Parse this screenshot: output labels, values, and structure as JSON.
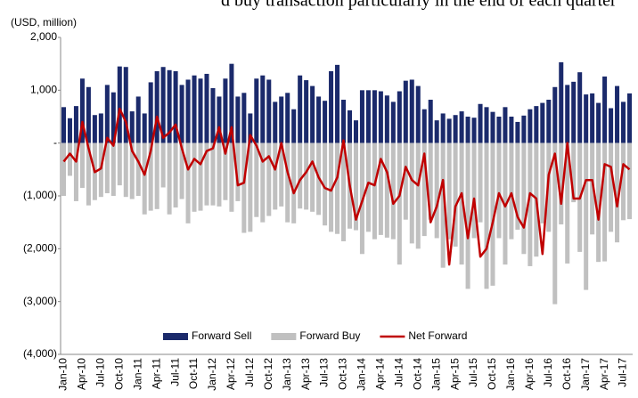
{
  "caption": "d buy transaction particularly in the end of each quarter",
  "chart_data": {
    "type": "bar_line",
    "ylabel": "(USD, million)",
    "categories": [
      "Jan-10",
      null,
      null,
      "Apr-10",
      null,
      null,
      "Jul-10",
      null,
      null,
      "Oct-10",
      null,
      null,
      "Jan-11",
      null,
      null,
      "Apr-11",
      null,
      null,
      "Jul-11",
      null,
      null,
      "Oct-11",
      null,
      null,
      "Jan-12",
      null,
      null,
      "Apr-12",
      null,
      null,
      "Jul-12",
      null,
      null,
      "Oct-12",
      null,
      null,
      "Jan-13",
      null,
      null,
      "Apr-13",
      null,
      null,
      "Jul-13",
      null,
      null,
      "Oct-13",
      null,
      null,
      "Jan-14",
      null,
      null,
      "Apr-14",
      null,
      null,
      "Jul-14",
      null,
      null,
      "Oct-14",
      null,
      null,
      "Jan-15",
      null,
      null,
      "Apr-15",
      null,
      null,
      "Jul-15",
      null,
      null,
      "Oct-15",
      null,
      null,
      "Jan-16",
      null,
      null,
      "Apr-16",
      null,
      null,
      "Jul-16",
      null,
      null,
      "Oct-16",
      null,
      null,
      "Jan-17",
      null,
      null,
      "Apr-17",
      null,
      null,
      "Jul-17",
      null
    ],
    "series": [
      {
        "name": "Forward Sell",
        "color": "#1b2a6b",
        "kind": "bar",
        "values": [
          680,
          470,
          700,
          1220,
          1060,
          530,
          560,
          1100,
          960,
          1450,
          1440,
          600,
          880,
          560,
          1150,
          1360,
          1440,
          1380,
          1360,
          1100,
          1200,
          1280,
          1220,
          1310,
          1040,
          880,
          1220,
          1500,
          880,
          950,
          560,
          1220,
          1280,
          1200,
          780,
          880,
          950,
          640,
          1280,
          1190,
          1080,
          880,
          800,
          1360,
          1480,
          820,
          620,
          430,
          1000,
          1000,
          1000,
          980,
          900,
          780,
          980,
          1180,
          1200,
          1080,
          640,
          820,
          430,
          560,
          460,
          530,
          600,
          500,
          480,
          740,
          680,
          590,
          500,
          680,
          500,
          400,
          520,
          640,
          700,
          760,
          820,
          1060,
          1530,
          1100,
          1160,
          1340,
          920,
          940,
          760,
          1260,
          660,
          1080,
          780,
          940
        ]
      },
      {
        "name": "Forward Buy",
        "color": "#c0c0c0",
        "kind": "bar",
        "values": [
          -1000,
          -620,
          -1100,
          -850,
          -1180,
          -1080,
          -1020,
          -950,
          -1000,
          -800,
          -1020,
          -1060,
          -1000,
          -1350,
          -1280,
          -1250,
          -840,
          -1350,
          -1220,
          -1060,
          -1520,
          -1300,
          -1280,
          -1180,
          -1180,
          -1200,
          -1080,
          -1300,
          -1100,
          -1700,
          -1680,
          -1400,
          -1500,
          -1380,
          -1260,
          -1200,
          -1500,
          -1520,
          -1240,
          -1260,
          -1300,
          -1360,
          -1560,
          -1680,
          -1720,
          -1860,
          -1620,
          -1650,
          -2100,
          -1680,
          -1820,
          -1740,
          -1790,
          -1820,
          -2300,
          -1450,
          -1900,
          -2000,
          -1760,
          -1450,
          -1800,
          -2360,
          -1820,
          -1960,
          -2300,
          -2760,
          -1800,
          -1500,
          -2760,
          -2700,
          -1800,
          -2300,
          -1820,
          -1640,
          -2100,
          -2330,
          -2150,
          -1520,
          -1680,
          -3050,
          -1540,
          -2280,
          -1120,
          -2060,
          -2780,
          -1730,
          -2250,
          -2240,
          -1680,
          -1880,
          -1460,
          -1440
        ]
      },
      {
        "name": "Net Forward",
        "color": "#c00000",
        "kind": "line",
        "values": [
          -350,
          -200,
          -350,
          400,
          -100,
          -550,
          -480,
          100,
          -50,
          650,
          400,
          -150,
          -350,
          -600,
          -150,
          500,
          100,
          200,
          350,
          -100,
          -500,
          -300,
          -400,
          -150,
          -100,
          300,
          -200,
          300,
          -800,
          -750,
          150,
          -50,
          -350,
          -250,
          -500,
          0,
          -550,
          -950,
          -700,
          -550,
          -350,
          -650,
          -850,
          -900,
          -650,
          50,
          -800,
          -1450,
          -1100,
          -750,
          -800,
          -300,
          -550,
          -1150,
          -1000,
          -450,
          -700,
          -800,
          -200,
          -1500,
          -1200,
          -700,
          -2300,
          -1200,
          -950,
          -1800,
          -1050,
          -2150,
          -2000,
          -1500,
          -950,
          -1200,
          -950,
          -1400,
          -1600,
          -950,
          -1050,
          -2100,
          -600,
          -200,
          -1150,
          0,
          -1050,
          -1050,
          -700,
          -700,
          -1450,
          -400,
          -450,
          -1200,
          -400,
          -500
        ]
      }
    ],
    "ylim": [
      -4000,
      2000
    ],
    "yticks": [
      {
        "value": -4000,
        "label": "(4,000)"
      },
      {
        "value": -3000,
        "label": "(3,000)"
      },
      {
        "value": -2000,
        "label": "(2,000)"
      },
      {
        "value": -1000,
        "label": "(1,000)"
      },
      {
        "value": 0,
        "label": "-"
      },
      {
        "value": 1000,
        "label": "1,000"
      },
      {
        "value": 2000,
        "label": "2,000"
      }
    ],
    "grid": false,
    "legend": "bottom"
  }
}
